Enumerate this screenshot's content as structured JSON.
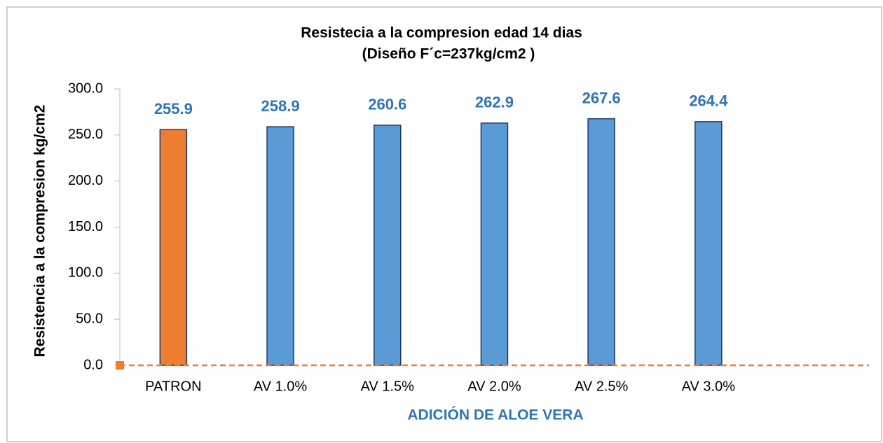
{
  "chart_data": {
    "type": "bar",
    "title": "Resistecia a la compresion edad 14 dias",
    "subtitle": "(Diseño F´c=237kg/cm2 )",
    "x_label": "ADICIÓN  DE ALOE VERA",
    "y_label": "Resistencia a la compresion kg/cm2",
    "categories": [
      "PATRON",
      "AV 1.0%",
      "AV 1.5%",
      "AV 2.0%",
      "AV 2.5%",
      "AV 3.0%"
    ],
    "values": [
      255.9,
      258.9,
      260.6,
      262.9,
      267.6,
      264.4
    ],
    "colors": [
      "#ed7d31",
      "#5b9bd5",
      "#5b9bd5",
      "#5b9bd5",
      "#5b9bd5",
      "#5b9bd5"
    ],
    "ylim": [
      0,
      300
    ],
    "yticks": [
      {
        "value": 0,
        "label": "0.0"
      },
      {
        "value": 50,
        "label": "50.0"
      },
      {
        "value": 100,
        "label": "100.0"
      },
      {
        "value": 150,
        "label": "150.0"
      },
      {
        "value": 200,
        "label": "200.0"
      },
      {
        "value": 250,
        "label": "250.0"
      },
      {
        "value": 300,
        "label": "300.0"
      }
    ]
  }
}
